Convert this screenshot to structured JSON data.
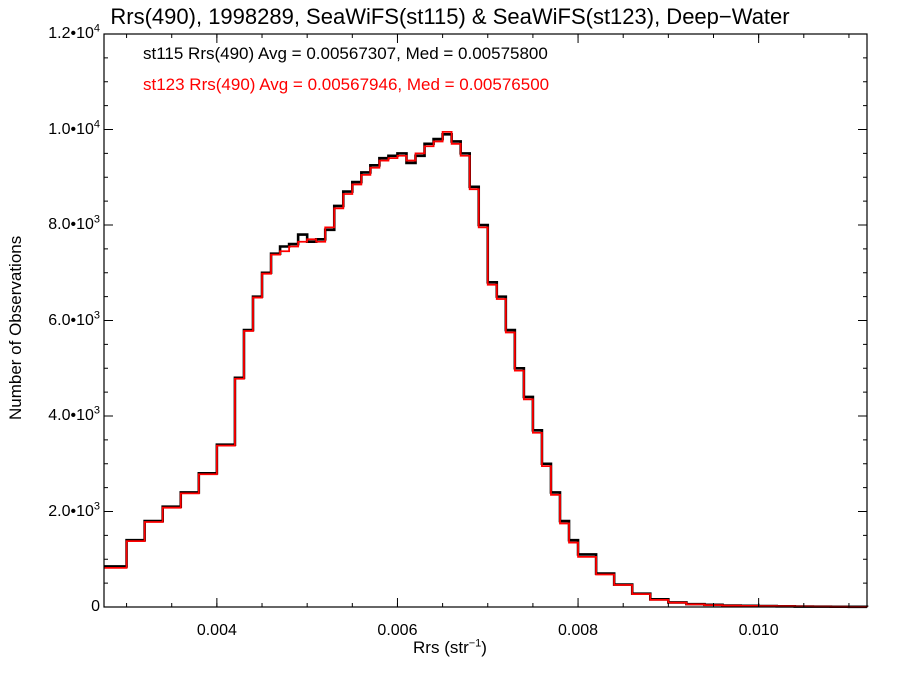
{
  "chart_data": {
    "type": "line",
    "title": "Rrs(490), 1998289, SeaWiFS(st115) & SeaWiFS(st123), Deep−Water",
    "xlabel": "Rrs (str",
    "xlabel_sup": "−1",
    "xlabel_close": ")",
    "ylabel": "Number of Observations",
    "xlim": [
      0.00275,
      0.0112
    ],
    "ylim": [
      0,
      12000
    ],
    "x_ticks": [
      {
        "value": 0.004,
        "label": "0.004"
      },
      {
        "value": 0.006,
        "label": "0.006"
      },
      {
        "value": 0.008,
        "label": "0.008"
      },
      {
        "value": 0.01,
        "label": "0.010"
      }
    ],
    "y_ticks": [
      {
        "value": 0,
        "mant": "0",
        "exp": ""
      },
      {
        "value": 2000,
        "mant": "2.0•10",
        "exp": "3"
      },
      {
        "value": 4000,
        "mant": "4.0•10",
        "exp": "3"
      },
      {
        "value": 6000,
        "mant": "6.0•10",
        "exp": "3"
      },
      {
        "value": 8000,
        "mant": "8.0•10",
        "exp": "3"
      },
      {
        "value": 10000,
        "mant": "1.0•10",
        "exp": "4"
      },
      {
        "value": 12000,
        "mant": "1.2•10",
        "exp": "4"
      }
    ],
    "annotations": [
      {
        "text": "st115 Rrs(490) Avg = 0.00567307, Med = 0.00575800",
        "color": "#000000"
      },
      {
        "text": "st123 Rrs(490) Avg = 0.00567946, Med = 0.00576500",
        "color": "#ff0000"
      }
    ],
    "series": [
      {
        "color": "#000000",
        "x": [
          0.00275,
          0.003,
          0.0032,
          0.0034,
          0.0036,
          0.0038,
          0.004,
          0.0042,
          0.0043,
          0.0044,
          0.0045,
          0.0046,
          0.0047,
          0.0048,
          0.0049,
          0.005,
          0.0051,
          0.0052,
          0.0053,
          0.0054,
          0.0055,
          0.0056,
          0.0057,
          0.0058,
          0.0059,
          0.006,
          0.0061,
          0.0062,
          0.0063,
          0.0064,
          0.0065,
          0.0066,
          0.0067,
          0.0068,
          0.0069,
          0.007,
          0.0071,
          0.0072,
          0.0073,
          0.0074,
          0.0075,
          0.0076,
          0.0077,
          0.0078,
          0.0079,
          0.008,
          0.0082,
          0.0084,
          0.0086,
          0.0088,
          0.009,
          0.0092,
          0.0094,
          0.0096,
          0.0098,
          0.01,
          0.0102,
          0.0104,
          0.0106,
          0.0108,
          0.011,
          0.0112
        ],
        "y": [
          850,
          1400,
          1800,
          2100,
          2400,
          2800,
          3400,
          4800,
          5800,
          6500,
          7000,
          7400,
          7550,
          7600,
          7800,
          7650,
          7700,
          7900,
          8400,
          8700,
          8900,
          9100,
          9250,
          9400,
          9450,
          9500,
          9300,
          9450,
          9700,
          9800,
          9900,
          9750,
          9500,
          8800,
          8000,
          6800,
          6500,
          5800,
          5000,
          4400,
          3700,
          3000,
          2400,
          1800,
          1400,
          1100,
          700,
          470,
          280,
          160,
          95,
          60,
          45,
          30,
          25,
          20,
          15,
          10,
          8,
          5,
          3,
          2
        ]
      },
      {
        "color": "#ff0000",
        "x": [
          0.00275,
          0.003,
          0.0032,
          0.0034,
          0.0036,
          0.0038,
          0.004,
          0.0042,
          0.0043,
          0.0044,
          0.0045,
          0.0046,
          0.0047,
          0.0048,
          0.0049,
          0.005,
          0.0051,
          0.0052,
          0.0053,
          0.0054,
          0.0055,
          0.0056,
          0.0057,
          0.0058,
          0.0059,
          0.006,
          0.0061,
          0.0062,
          0.0063,
          0.0064,
          0.0065,
          0.0066,
          0.0067,
          0.0068,
          0.0069,
          0.007,
          0.0071,
          0.0072,
          0.0073,
          0.0074,
          0.0075,
          0.0076,
          0.0077,
          0.0078,
          0.0079,
          0.008,
          0.0082,
          0.0084,
          0.0086,
          0.0088,
          0.009,
          0.0092,
          0.0094,
          0.0096,
          0.0098,
          0.01,
          0.0102,
          0.0104,
          0.0106,
          0.0108,
          0.011,
          0.0112
        ],
        "y": [
          820,
          1380,
          1780,
          2080,
          2380,
          2780,
          3380,
          4780,
          5780,
          6480,
          6980,
          7380,
          7450,
          7550,
          7650,
          7700,
          7650,
          7950,
          8350,
          8650,
          8850,
          9050,
          9200,
          9350,
          9400,
          9450,
          9350,
          9500,
          9650,
          9750,
          9950,
          9700,
          9450,
          8750,
          7950,
          6750,
          6450,
          5750,
          4950,
          4350,
          3650,
          2950,
          2350,
          1750,
          1350,
          1050,
          680,
          460,
          270,
          150,
          90,
          55,
          40,
          28,
          22,
          18,
          14,
          9,
          7,
          4,
          3,
          2
        ]
      }
    ]
  }
}
